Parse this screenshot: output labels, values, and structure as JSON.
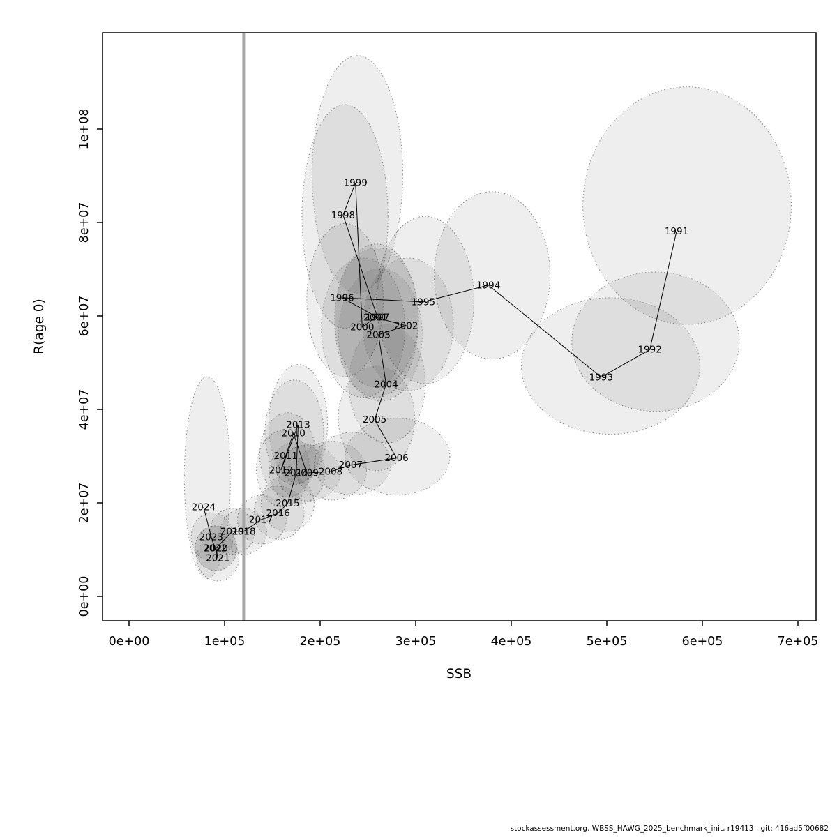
{
  "footer": "stockassessment.org, WBSS_HAWG_2025_benchmark_init, r19413 , git: 416ad5f00682",
  "chart_data": {
    "type": "scatter",
    "title": "",
    "xlabel": "SSB",
    "ylabel": "R(age 0)",
    "xlim": [
      0,
      700000
    ],
    "ylim": [
      0,
      100000000
    ],
    "grid": false,
    "legend": "none",
    "x_ticks": {
      "values": [
        0,
        100000,
        200000,
        300000,
        400000,
        500000,
        600000,
        700000
      ],
      "labels": [
        "0e+00",
        "1e+05",
        "2e+05",
        "3e+05",
        "4e+05",
        "5e+05",
        "6e+05",
        "7e+05"
      ]
    },
    "y_ticks": {
      "values": [
        0,
        20000000,
        40000000,
        60000000,
        80000000,
        100000000
      ],
      "labels": [
        "0e+00",
        "2e+07",
        "4e+07",
        "6e+07",
        "8e+07",
        "1e+08"
      ]
    },
    "reference_line_x": 120000,
    "label_color": "#FF0000",
    "line_color": "#000000",
    "ellipse_fill": "rgba(0,0,0,0.065)",
    "ellipse_stroke": "#8C8C8C",
    "reference_line_color": "#A6A6A6",
    "points": [
      {
        "year": "1991",
        "ssb": 573000,
        "rec": 78100000,
        "ell": {
          "cx": 584000,
          "cy": 83600000,
          "rx": 109000,
          "ry": 25400000
        }
      },
      {
        "year": "1992",
        "ssb": 545000,
        "rec": 52800000,
        "ell": {
          "cx": 551000,
          "cy": 54500000,
          "rx": 87600,
          "ry": 14900000
        }
      },
      {
        "year": "1993",
        "ssb": 494000,
        "rec": 46900000,
        "ell": {
          "cx": 504000,
          "cy": 49300000,
          "rx": 93400,
          "ry": 14600000
        }
      },
      {
        "year": "1994",
        "ssb": 376000,
        "rec": 66600000,
        "ell": {
          "cx": 380000,
          "cy": 68700000,
          "rx": 60600,
          "ry": 17900000
        }
      },
      {
        "year": "1995",
        "ssb": 308000,
        "rec": 63000000,
        "ell": {
          "cx": 310000,
          "cy": 63400000,
          "rx": 51000,
          "ry": 17900000
        }
      },
      {
        "year": "1996",
        "ssb": 223000,
        "rec": 63900000,
        "ell": {
          "cx": 226000,
          "cy": 63400000,
          "rx": 40000,
          "ry": 16400000
        }
      },
      {
        "year": "1997",
        "ssb": 260000,
        "rec": 59700000,
        "ell": {
          "cx": 259000,
          "cy": 59000000,
          "rx": 43800,
          "ry": 16400000
        }
      },
      {
        "year": "1998",
        "ssb": 224000,
        "rec": 81600000,
        "ell": {
          "cx": 226000,
          "cy": 81300000,
          "rx": 45000,
          "ry": 23900000
        }
      },
      {
        "year": "1999",
        "ssb": 237000,
        "rec": 88500000,
        "ell": {
          "cx": 239000,
          "cy": 90300000,
          "rx": 47400,
          "ry": 25400000
        }
      },
      {
        "year": "2000",
        "ssb": 244000,
        "rec": 57600000,
        "ell": {
          "cx": 245000,
          "cy": 57500000,
          "rx": 43800,
          "ry": 14900000
        }
      },
      {
        "year": "2001",
        "ssb": 258000,
        "rec": 59700000,
        "ell": {
          "cx": 259000,
          "cy": 59700000,
          "rx": 43800,
          "ry": 14900000
        }
      },
      {
        "year": "2002",
        "ssb": 290000,
        "rec": 57900000,
        "ell": {
          "cx": 292000,
          "cy": 58200000,
          "rx": 47400,
          "ry": 14200000
        }
      },
      {
        "year": "2003",
        "ssb": 261000,
        "rec": 56000000,
        "ell": {
          "cx": 263000,
          "cy": 56000000,
          "rx": 43800,
          "ry": 14200000
        }
      },
      {
        "year": "2004",
        "ssb": 269000,
        "rec": 45400000,
        "ell": {
          "cx": 270000,
          "cy": 45500000,
          "rx": 40000,
          "ry": 12700000
        }
      },
      {
        "year": "2005",
        "ssb": 257000,
        "rec": 37800000,
        "ell": {
          "cx": 259000,
          "cy": 38100000,
          "rx": 40000,
          "ry": 11200000
        }
      },
      {
        "year": "2006",
        "ssb": 280000,
        "rec": 29600000,
        "ell": {
          "cx": 281000,
          "cy": 29900000,
          "rx": 54700,
          "ry": 8200000
        }
      },
      {
        "year": "2007",
        "ssb": 232000,
        "rec": 28100000,
        "ell": {
          "cx": 234000,
          "cy": 28400000,
          "rx": 40000,
          "ry": 6700000
        }
      },
      {
        "year": "2008",
        "ssb": 211000,
        "rec": 26700000,
        "ell": {
          "cx": 212000,
          "cy": 26900000,
          "rx": 36500,
          "ry": 6300000
        }
      },
      {
        "year": "2009",
        "ssb": 186000,
        "rec": 26400000,
        "ell": {
          "cx": 188000,
          "cy": 26400000,
          "rx": 32800,
          "ry": 6000000
        }
      },
      {
        "year": "2010",
        "ssb": 172000,
        "rec": 34900000,
        "ell": {
          "cx": 173000,
          "cy": 35100000,
          "rx": 30700,
          "ry": 11200000
        }
      },
      {
        "year": "2011",
        "ssb": 164000,
        "rec": 30100000,
        "ell": {
          "cx": 166000,
          "cy": 30300000,
          "rx": 29200,
          "ry": 9000000
        }
      },
      {
        "year": "2012",
        "ssb": 159000,
        "rec": 27000000,
        "ell": {
          "cx": 161000,
          "cy": 27300000,
          "rx": 27700,
          "ry": 8200000
        }
      },
      {
        "year": "2013",
        "ssb": 177000,
        "rec": 36700000,
        "ell": {
          "cx": 177000,
          "cy": 36900000,
          "rx": 30700,
          "ry": 12700000
        }
      },
      {
        "year": "2014",
        "ssb": 175000,
        "rec": 26400000,
        "ell": {
          "cx": 176000,
          "cy": 26400000,
          "rx": 29200,
          "ry": 6700000
        }
      },
      {
        "year": "2015",
        "ssb": 166000,
        "rec": 19900000,
        "ell": {
          "cx": 166000,
          "cy": 19900000,
          "rx": 27700,
          "ry": 6000000
        }
      },
      {
        "year": "2016",
        "ssb": 156000,
        "rec": 17800000,
        "ell": {
          "cx": 157000,
          "cy": 17900000,
          "rx": 26300,
          "ry": 5700000
        }
      },
      {
        "year": "2017",
        "ssb": 138000,
        "rec": 16400000,
        "ell": {
          "cx": 139000,
          "cy": 16400000,
          "rx": 25500,
          "ry": 5200000
        }
      },
      {
        "year": "2018",
        "ssb": 120000,
        "rec": 13900000,
        "ell": {
          "cx": 120000,
          "cy": 13900000,
          "rx": 24100,
          "ry": 4900000
        }
      },
      {
        "year": "2019",
        "ssb": 108000,
        "rec": 13900000,
        "ell": {
          "cx": 108000,
          "cy": 13900000,
          "rx": 23400,
          "ry": 4900000
        }
      },
      {
        "year": "2020",
        "ssb": 91000,
        "rec": 10300000,
        "ell": {
          "cx": 91000,
          "cy": 10300000,
          "rx": 21900,
          "ry": 4800000
        }
      },
      {
        "year": "2021",
        "ssb": 93000,
        "rec": 8200000,
        "ell": {
          "cx": 93000,
          "cy": 8200000,
          "rx": 21900,
          "ry": 4900000
        }
      },
      {
        "year": "2022",
        "ssb": 90000,
        "rec": 10300000,
        "ell": {
          "cx": 91000,
          "cy": 10300000,
          "rx": 21900,
          "ry": 4800000
        }
      },
      {
        "year": "2023",
        "ssb": 86000,
        "rec": 12700000,
        "ell": {
          "cx": 87000,
          "cy": 12700000,
          "rx": 21900,
          "ry": 5200000
        }
      },
      {
        "year": "2024",
        "ssb": 78000,
        "rec": 19100000,
        "ell": {
          "cx": 82000,
          "cy": 25400000,
          "rx": 24100,
          "ry": 21600000
        }
      }
    ]
  }
}
